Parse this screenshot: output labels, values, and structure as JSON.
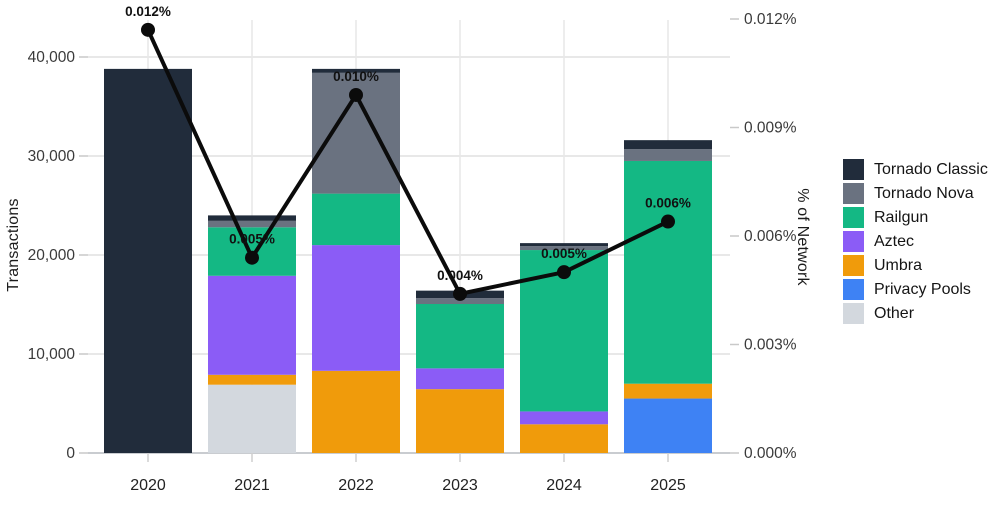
{
  "figure": {
    "background": "#ffffff"
  },
  "left_axis": {
    "title": "Transactions",
    "tick_labels": [
      "0",
      "10,000",
      "20,000",
      "30,000",
      "40,000"
    ],
    "tick_values": [
      0,
      10000,
      20000,
      30000,
      40000
    ],
    "max": 40000
  },
  "right_axis": {
    "title": "% of Network",
    "tick_labels": [
      "0.000%",
      "0.003%",
      "0.006%",
      "0.009%",
      "0.012%"
    ],
    "tick_values": [
      0,
      0.003,
      0.006,
      0.009,
      0.012
    ],
    "max": 0.012
  },
  "chart_data": {
    "type": "bar+line",
    "categories": [
      "2020",
      "2021",
      "2022",
      "2023",
      "2024",
      "2025"
    ],
    "stack_order": [
      "Other",
      "Privacy Pools",
      "Umbra",
      "Aztec",
      "Railgun",
      "Tornado Nova",
      "Tornado Classic"
    ],
    "series": [
      {
        "name": "Tornado Classic",
        "color": "#212c3b",
        "values": [
          38800,
          550,
          400,
          750,
          300,
          900
        ]
      },
      {
        "name": "Tornado Nova",
        "color": "#6a7280",
        "values": [
          0,
          650,
          12200,
          600,
          400,
          1200
        ]
      },
      {
        "name": "Railgun",
        "color": "#14b884",
        "values": [
          0,
          4900,
          5200,
          6500,
          16300,
          22500
        ]
      },
      {
        "name": "Aztec",
        "color": "#8b5cf6",
        "values": [
          0,
          10000,
          12700,
          2100,
          1300,
          0
        ]
      },
      {
        "name": "Umbra",
        "color": "#f09b0b",
        "values": [
          0,
          1000,
          8300,
          6450,
          2900,
          1500
        ]
      },
      {
        "name": "Privacy Pools",
        "color": "#3e82f4",
        "values": [
          0,
          0,
          0,
          0,
          0,
          5500
        ]
      },
      {
        "name": "Other",
        "color": "#d3d8de",
        "values": [
          0,
          6900,
          0,
          0,
          0,
          0
        ]
      }
    ],
    "line": {
      "name": "% of Network",
      "color": "#0b0b0b",
      "values": [
        0.012,
        0.005,
        0.01,
        0.004,
        0.005,
        0.006
      ],
      "labels": [
        "0.012%",
        "0.005%",
        "0.010%",
        "0.004%",
        "0.005%",
        "0.006%"
      ],
      "plot_values": [
        0.0117,
        0.0054,
        0.0099,
        0.0044,
        0.005,
        0.0064
      ]
    },
    "grid": true,
    "legend_position": "right",
    "ylim_left": [
      0,
      40000
    ],
    "ylim_right": [
      0,
      0.012
    ]
  },
  "legend": {
    "items": [
      {
        "label": "Tornado Classic",
        "color": "#212c3b"
      },
      {
        "label": "Tornado Nova",
        "color": "#6a7280"
      },
      {
        "label": "Railgun",
        "color": "#14b884"
      },
      {
        "label": "Aztec",
        "color": "#8b5cf6"
      },
      {
        "label": "Umbra",
        "color": "#f09b0b"
      },
      {
        "label": "Privacy Pools",
        "color": "#3e82f4"
      },
      {
        "label": "Other",
        "color": "#d3d8de"
      }
    ]
  }
}
